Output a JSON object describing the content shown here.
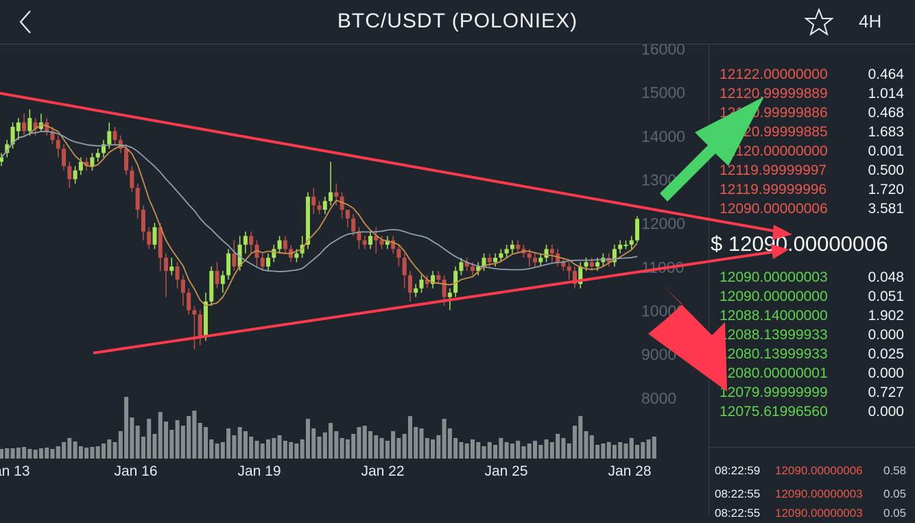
{
  "header": {
    "back_icon": "chevron-left-icon",
    "title": "BTC/USDT (POLONIEX)",
    "star_icon": "star-outline-icon",
    "interval": "4H"
  },
  "chart_data": {
    "type": "candlestick",
    "y_ticks": [
      "16000",
      "15000",
      "14000",
      "13000",
      "12000",
      "11000",
      "10000",
      "9000",
      "8000"
    ],
    "x_ticks": [
      "Jan 13",
      "Jan 16",
      "Jan 19",
      "Jan 22",
      "Jan 25",
      "Jan 28"
    ],
    "ylim": [
      7700,
      16100
    ],
    "colors": {
      "up": "#a6e45a",
      "down": "#c04e48",
      "ma_fast": "#c8924f",
      "ma_slow": "#8fa0ad",
      "volume": "#8a8d90",
      "trendline": "#ff3a4e",
      "arrow_up": "#47d36a",
      "arrow_down": "#ff3a4e"
    },
    "candles": [
      [
        13400,
        13500,
        13300,
        13600
      ],
      [
        13600,
        13800,
        13500,
        13900
      ],
      [
        13800,
        14200,
        13700,
        14300
      ],
      [
        14100,
        14300,
        13900,
        14400
      ],
      [
        14300,
        14100,
        14000,
        14500
      ],
      [
        14100,
        14400,
        14000,
        14600
      ],
      [
        14300,
        14150,
        14000,
        14400
      ],
      [
        14150,
        14300,
        14100,
        14500
      ],
      [
        14300,
        14100,
        14000,
        14400
      ],
      [
        14100,
        13900,
        13800,
        14200
      ],
      [
        13900,
        13700,
        13500,
        14000
      ],
      [
        13700,
        13300,
        13200,
        13800
      ],
      [
        13300,
        13000,
        12800,
        13400
      ],
      [
        13000,
        13200,
        12900,
        13300
      ],
      [
        13200,
        13400,
        13100,
        13500
      ],
      [
        13400,
        13300,
        13200,
        13500
      ],
      [
        13300,
        13500,
        13200,
        13600
      ],
      [
        13500,
        13600,
        13400,
        13700
      ],
      [
        13600,
        13800,
        13500,
        13900
      ],
      [
        13800,
        14100,
        13700,
        14300
      ],
      [
        14100,
        13900,
        13800,
        14200
      ],
      [
        13900,
        13700,
        13600,
        14000
      ],
      [
        13700,
        13200,
        13100,
        13800
      ],
      [
        13200,
        12800,
        12700,
        13300
      ],
      [
        12800,
        12300,
        12100,
        12900
      ],
      [
        12300,
        11800,
        11600,
        12400
      ],
      [
        11800,
        11500,
        11400,
        11900
      ],
      [
        11500,
        11900,
        11400,
        12000
      ],
      [
        11900,
        11200,
        10900,
        12000
      ],
      [
        11200,
        10900,
        10300,
        11300
      ],
      [
        10900,
        11000,
        10800,
        11200
      ],
      [
        11000,
        10700,
        10500,
        11100
      ],
      [
        10700,
        10400,
        10100,
        10800
      ],
      [
        10400,
        10000,
        9900,
        10500
      ],
      [
        10000,
        9900,
        9100,
        10100
      ],
      [
        9900,
        9400,
        9200,
        10000
      ],
      [
        9400,
        10200,
        9300,
        10400
      ],
      [
        10200,
        10900,
        10100,
        11000
      ],
      [
        10900,
        10600,
        10500,
        11100
      ],
      [
        10600,
        10800,
        10400,
        10900
      ],
      [
        10800,
        11300,
        10700,
        11400
      ],
      [
        11300,
        11000,
        10900,
        11600
      ],
      [
        11000,
        11500,
        10900,
        11700
      ],
      [
        11500,
        11700,
        11300,
        11800
      ],
      [
        11700,
        11500,
        11300,
        11800
      ],
      [
        11500,
        11200,
        11000,
        11600
      ],
      [
        11200,
        11000,
        10900,
        11300
      ],
      [
        11000,
        11200,
        10900,
        11300
      ],
      [
        11200,
        11400,
        11100,
        11500
      ],
      [
        11400,
        11600,
        11300,
        11700
      ],
      [
        11600,
        11400,
        11300,
        11700
      ],
      [
        11400,
        11200,
        11100,
        11500
      ],
      [
        11200,
        11300,
        11100,
        11400
      ],
      [
        11300,
        11500,
        11200,
        11700
      ],
      [
        11500,
        12600,
        11400,
        12700
      ],
      [
        12600,
        12400,
        12200,
        12800
      ],
      [
        12400,
        12300,
        12200,
        12500
      ],
      [
        12300,
        12500,
        12200,
        12600
      ],
      [
        12500,
        12700,
        12400,
        13400
      ],
      [
        12700,
        12600,
        12400,
        12900
      ],
      [
        12600,
        12300,
        12100,
        12700
      ],
      [
        12300,
        12100,
        11900,
        12300
      ],
      [
        12100,
        11800,
        11700,
        12200
      ],
      [
        11800,
        11600,
        11400,
        11900
      ],
      [
        11600,
        11500,
        11400,
        11700
      ],
      [
        11500,
        11700,
        11400,
        11800
      ],
      [
        11700,
        11600,
        11300,
        11900
      ],
      [
        11600,
        11500,
        11400,
        11700
      ],
      [
        11500,
        11600,
        11400,
        11700
      ],
      [
        11600,
        11400,
        11300,
        11700
      ],
      [
        11400,
        11200,
        11000,
        11500
      ],
      [
        11200,
        10800,
        10500,
        11300
      ],
      [
        10800,
        10400,
        10200,
        10900
      ],
      [
        10400,
        10500,
        10300,
        10600
      ],
      [
        10500,
        10700,
        10400,
        10800
      ],
      [
        10700,
        10600,
        10500,
        10800
      ],
      [
        10600,
        10800,
        10500,
        10900
      ],
      [
        10800,
        10700,
        10600,
        10900
      ],
      [
        10700,
        10300,
        10100,
        10800
      ],
      [
        10300,
        10400,
        10000,
        10500
      ],
      [
        10400,
        10900,
        10300,
        11000
      ],
      [
        10900,
        11100,
        10800,
        11200
      ],
      [
        11100,
        11000,
        10900,
        11200
      ],
      [
        11000,
        10900,
        10800,
        11100
      ],
      [
        10900,
        11000,
        10800,
        11100
      ],
      [
        11000,
        11200,
        10900,
        11300
      ],
      [
        11200,
        11100,
        11000,
        11300
      ],
      [
        11100,
        11200,
        11000,
        11300
      ],
      [
        11200,
        11300,
        11100,
        11400
      ],
      [
        11300,
        11400,
        11200,
        11500
      ],
      [
        11400,
        11500,
        11300,
        11600
      ],
      [
        11500,
        11400,
        11300,
        11600
      ],
      [
        11400,
        11300,
        11200,
        11500
      ],
      [
        11300,
        11200,
        11000,
        11400
      ],
      [
        11200,
        11100,
        11000,
        11300
      ],
      [
        11100,
        11200,
        11000,
        11300
      ],
      [
        11200,
        11400,
        11100,
        11500
      ],
      [
        11400,
        11300,
        11100,
        11500
      ],
      [
        11300,
        11100,
        11000,
        11400
      ],
      [
        11100,
        11000,
        10900,
        11200
      ],
      [
        11000,
        10900,
        10700,
        11100
      ],
      [
        10900,
        10600,
        10500,
        11000
      ],
      [
        10600,
        11000,
        10500,
        11100
      ],
      [
        11000,
        11100,
        10900,
        11200
      ],
      [
        11100,
        11000,
        10900,
        11200
      ],
      [
        11000,
        11100,
        10900,
        11200
      ],
      [
        11100,
        11200,
        11000,
        11300
      ],
      [
        11200,
        11100,
        11000,
        11300
      ],
      [
        11100,
        11400,
        11000,
        11500
      ],
      [
        11400,
        11500,
        11300,
        11600
      ],
      [
        11500,
        11500,
        11400,
        11600
      ],
      [
        11500,
        11600,
        11400,
        11700
      ],
      [
        11600,
        12090,
        11550,
        12150
      ]
    ],
    "volumes": [
      14,
      15,
      15,
      16,
      17,
      14,
      13,
      15,
      16,
      14,
      18,
      24,
      30,
      25,
      18,
      16,
      17,
      18,
      22,
      28,
      24,
      40,
      90,
      60,
      48,
      32,
      58,
      36,
      68,
      54,
      42,
      56,
      48,
      62,
      70,
      52,
      46,
      28,
      22,
      24,
      44,
      34,
      46,
      40,
      32,
      26,
      22,
      28,
      30,
      34,
      26,
      24,
      22,
      28,
      58,
      44,
      32,
      38,
      52,
      40,
      30,
      28,
      36,
      46,
      48,
      40,
      34,
      30,
      26,
      40,
      30,
      36,
      62,
      46,
      44,
      30,
      28,
      34,
      58,
      44,
      30,
      24,
      22,
      28,
      24,
      18,
      24,
      20,
      30,
      24,
      22,
      26,
      18,
      22,
      26,
      20,
      28,
      24,
      36,
      30,
      22,
      48,
      62,
      40,
      34,
      20,
      22,
      24,
      20,
      24,
      22,
      30,
      20,
      24,
      28,
      32
    ]
  },
  "orderbook": {
    "asks": [
      {
        "price": "12122.00000000",
        "qty": "0.464"
      },
      {
        "price": "12120.99999889",
        "qty": "1.014"
      },
      {
        "price": "12120.99999886",
        "qty": "0.468"
      },
      {
        "price": "12120.99999885",
        "qty": "1.683"
      },
      {
        "price": "12120.00000000",
        "qty": "0.001"
      },
      {
        "price": "12119.99999997",
        "qty": "0.500"
      },
      {
        "price": "12119.99999996",
        "qty": "1.720"
      },
      {
        "price": "12090.00000006",
        "qty": "3.581"
      }
    ],
    "last_price": "$ 12090.00000006",
    "bids": [
      {
        "price": "12090.00000003",
        "qty": "0.048"
      },
      {
        "price": "12090.00000000",
        "qty": "0.051"
      },
      {
        "price": "12088.14000000",
        "qty": "1.902"
      },
      {
        "price": "12088.13999933",
        "qty": "0.000"
      },
      {
        "price": "12080.13999933",
        "qty": "0.025"
      },
      {
        "price": "12080.00000001",
        "qty": "0.000"
      },
      {
        "price": "12079.99999999",
        "qty": "0.727"
      },
      {
        "price": "12075.61996560",
        "qty": "0.000"
      }
    ]
  },
  "trades": [
    {
      "time": "08:22:59",
      "price": "12090.00000006",
      "qty": "0.58"
    },
    {
      "time": "08:22:55",
      "price": "12090.00000003",
      "qty": "0.05"
    },
    {
      "time": "08:22:55",
      "price": "12090.00000003",
      "qty": "0.05"
    }
  ]
}
